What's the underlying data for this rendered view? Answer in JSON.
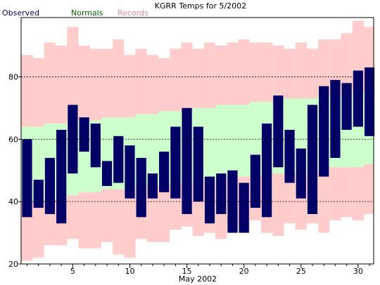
{
  "chart_data": {
    "type": "bar",
    "title": "KGRR Temps for 5/2002",
    "xlabel": "May 2002",
    "ylabel": "",
    "xlim": [
      1,
      31
    ],
    "ylim": [
      20,
      99
    ],
    "x_ticks": [
      5,
      10,
      15,
      20,
      25,
      30
    ],
    "y_ticks": [
      20,
      40,
      60,
      80
    ],
    "dashed_gridlines_y": [
      40,
      60,
      80
    ],
    "legend_placement": "top-left",
    "legend": [
      {
        "name": "Observed",
        "color": "#000066"
      },
      {
        "name": "Normals",
        "color": "#006600"
      },
      {
        "name": "Records",
        "color": "#dd8899"
      }
    ],
    "days": [
      1,
      2,
      3,
      4,
      5,
      6,
      7,
      8,
      9,
      10,
      11,
      12,
      13,
      14,
      15,
      16,
      17,
      18,
      19,
      20,
      21,
      22,
      23,
      24,
      25,
      26,
      27,
      28,
      29,
      30,
      31
    ],
    "series": [
      {
        "name": "Records",
        "color": "#ffcccc",
        "high": [
          87,
          86,
          91,
          90,
          96,
          90,
          89,
          89,
          92,
          87,
          89,
          87,
          86,
          89,
          91,
          89,
          91,
          90,
          91,
          92,
          91,
          91,
          90,
          89,
          91,
          89,
          92,
          92,
          94,
          98,
          96
        ],
        "low": [
          21,
          22,
          26,
          26,
          28,
          25,
          25,
          27,
          23,
          22,
          28,
          27,
          27,
          31,
          32,
          29,
          30,
          28,
          31,
          30,
          34,
          30,
          29,
          33,
          31,
          33,
          30,
          34,
          35,
          34,
          36
        ]
      },
      {
        "name": "Normals",
        "color": "#ccffcc",
        "high": [
          64,
          64,
          65,
          65,
          66,
          66,
          66,
          67,
          67,
          67,
          68,
          68,
          69,
          69,
          69,
          70,
          70,
          71,
          71,
          71,
          72,
          72,
          72,
          73,
          73,
          73,
          74,
          74,
          74,
          75,
          75
        ],
        "low": [
          40,
          40,
          40,
          41,
          42,
          43,
          43,
          44,
          44,
          44,
          45,
          45,
          45,
          46,
          46,
          47,
          47,
          47,
          48,
          48,
          48,
          49,
          49,
          49,
          49,
          50,
          50,
          51,
          51,
          51,
          52
        ]
      },
      {
        "name": "Observed",
        "color": "#000066",
        "high": [
          60,
          47,
          54,
          63,
          71,
          67,
          65,
          53,
          61,
          58,
          54,
          49,
          56,
          64,
          70,
          64,
          48,
          49,
          50,
          46,
          55,
          65,
          74,
          63,
          57,
          71,
          77,
          79,
          78,
          82,
          83
        ],
        "low": [
          35,
          38,
          36,
          33,
          49,
          56,
          51,
          45,
          46,
          41,
          35,
          41,
          43,
          41,
          36,
          40,
          33,
          36,
          30,
          30,
          38,
          35,
          51,
          46,
          41,
          36,
          48,
          54,
          63,
          64,
          61
        ]
      }
    ]
  }
}
